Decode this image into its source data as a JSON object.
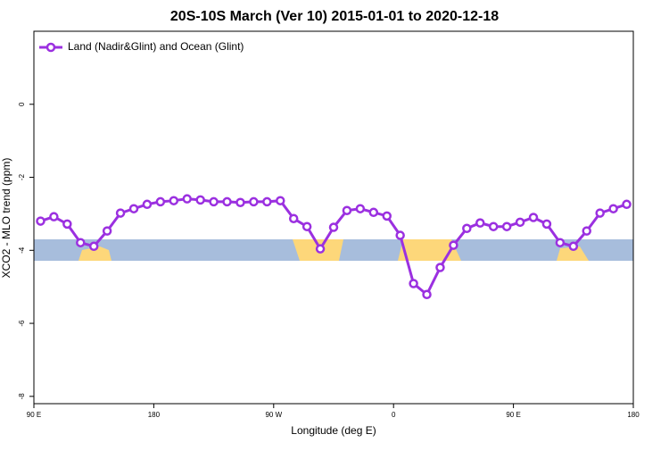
{
  "chart_data": {
    "type": "line",
    "title": "20S-10S March (Ver 10)   2015-01-01 to 2020-12-18",
    "xlabel": "Longitude (deg E)",
    "ylabel": "XCO2 - MLO trend (ppm)",
    "x": [
      95,
      105,
      115,
      125,
      135,
      145,
      155,
      165,
      175,
      185,
      195,
      205,
      215,
      225,
      235,
      245,
      255,
      265,
      275,
      285,
      295,
      305,
      315,
      325,
      335,
      345,
      355,
      365,
      375,
      385,
      395,
      405,
      415,
      425,
      435,
      445,
      455,
      465,
      475,
      485,
      495,
      505,
      515,
      525,
      535
    ],
    "series": [
      {
        "name": "Land (Nadir&Glint) and Ocean (Glint)",
        "color": "#9b30e0",
        "values": [
          -3.2,
          -3.08,
          -3.28,
          -3.79,
          -3.89,
          -3.47,
          -2.98,
          -2.86,
          -2.74,
          -2.67,
          -2.64,
          -2.59,
          -2.62,
          -2.67,
          -2.67,
          -2.69,
          -2.67,
          -2.67,
          -2.64,
          -3.13,
          -3.35,
          -3.96,
          -3.37,
          -2.91,
          -2.86,
          -2.96,
          -3.06,
          -3.59,
          -4.91,
          -5.21,
          -4.47,
          -3.86,
          -3.4,
          -3.25,
          -3.35,
          -3.35,
          -3.23,
          -3.1,
          -3.28,
          -3.79,
          -3.89,
          -3.47,
          -2.98,
          -2.86,
          -2.74
        ]
      }
    ],
    "xlim": [
      90,
      540
    ],
    "xticks": [
      {
        "value": 90,
        "label": "90 E"
      },
      180,
      {
        "value": 270,
        "label": "90 W"
      },
      {
        "value": 360,
        "label": "0"
      },
      {
        "value": 450,
        "label": "90 E"
      },
      {
        "value": 540,
        "label": "180"
      }
    ],
    "ylim": [
      -8.2,
      2.0
    ],
    "yticks": [
      0,
      -2,
      -4,
      -6,
      -8
    ],
    "legend": "top-left"
  }
}
